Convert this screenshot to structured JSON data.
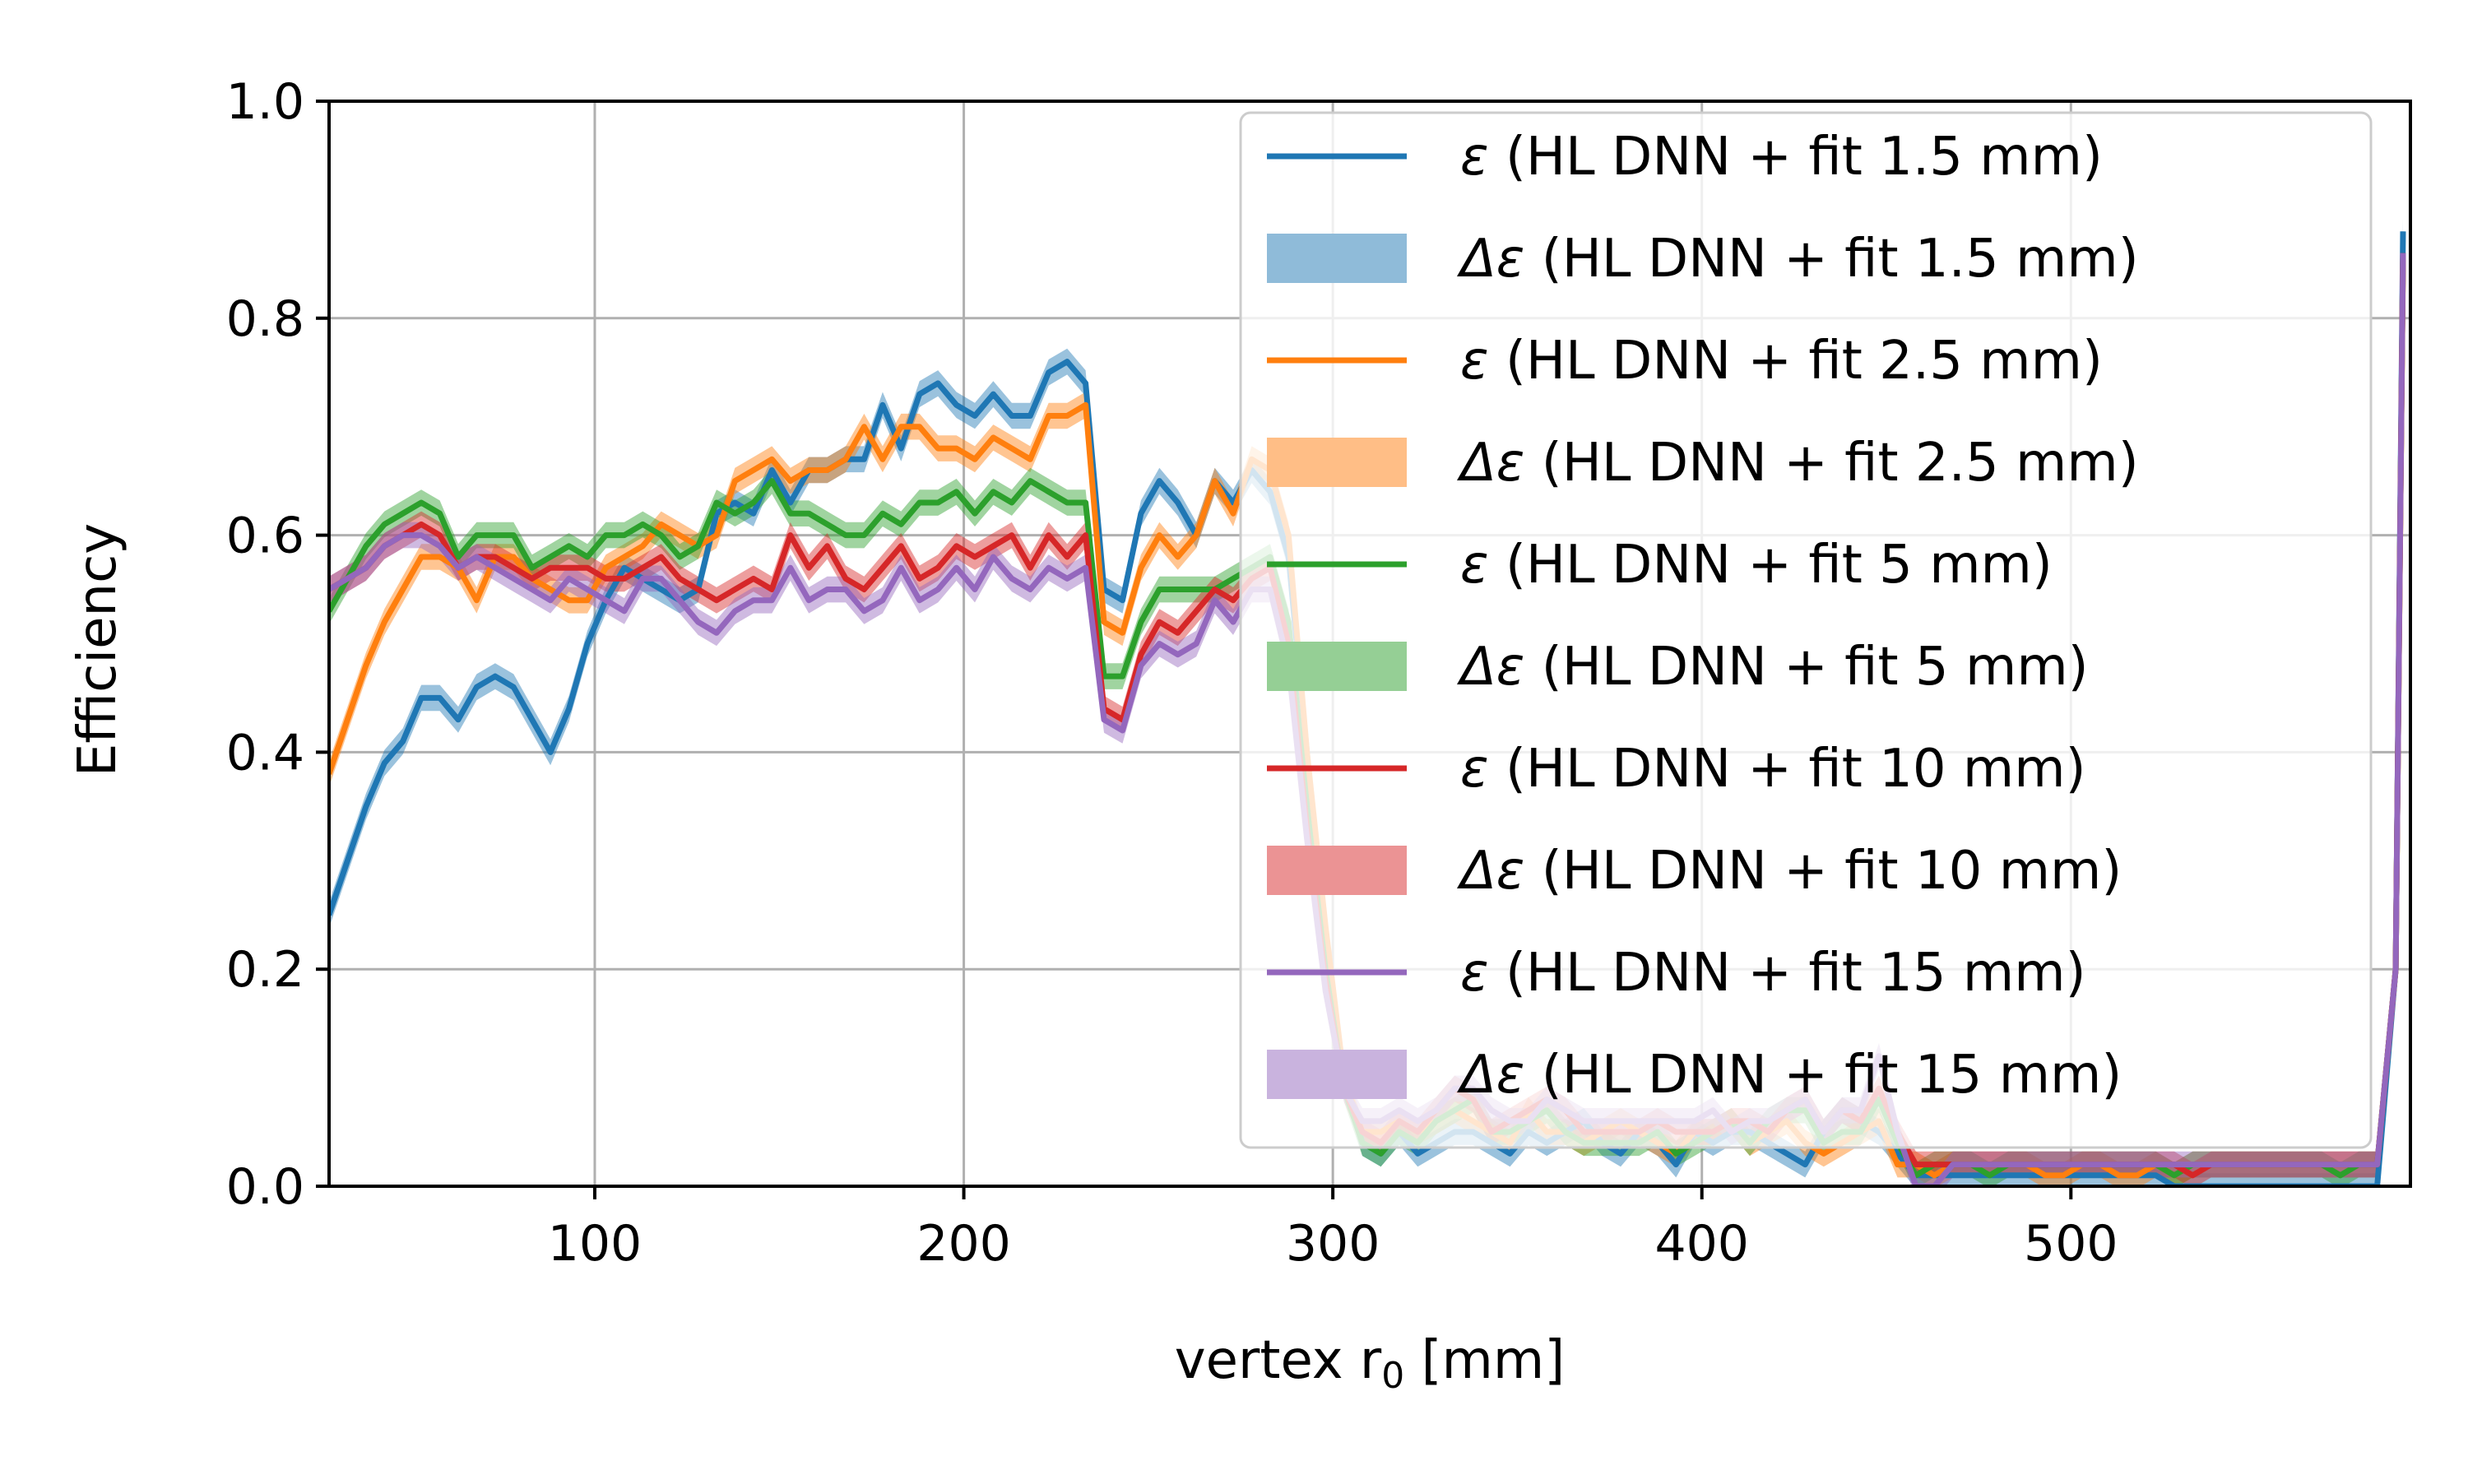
{
  "chart_data": {
    "type": "line",
    "title": "",
    "xlabel": "vertex r",
    "xlabel_sub": "0",
    "xlabel_unit": " [mm]",
    "ylabel": "Efficiency",
    "xlim": [
      28,
      592
    ],
    "ylim": [
      0,
      1.0
    ],
    "xticks": [
      100,
      200,
      300,
      400,
      500
    ],
    "xtick_labels": [
      "100",
      "200",
      "300",
      "400",
      "500"
    ],
    "yticks": [
      0,
      0.2,
      0.4,
      0.6,
      0.8,
      1.0
    ],
    "ytick_labels": [
      "0.0",
      "0.2",
      "0.4",
      "0.6",
      "0.8",
      "1.0"
    ],
    "grid": true,
    "legend_position": "top-right",
    "legend": [
      {
        "kind": "line",
        "series": 0,
        "symbol": "ε",
        "text": " (HL DNN + fit 1.5 mm)"
      },
      {
        "kind": "band",
        "series": 0,
        "symbol": "Δε",
        "text": " (HL DNN + fit 1.5 mm)"
      },
      {
        "kind": "line",
        "series": 1,
        "symbol": "ε",
        "text": " (HL DNN + fit 2.5 mm)"
      },
      {
        "kind": "band",
        "series": 1,
        "symbol": "Δε",
        "text": " (HL DNN + fit 2.5 mm)"
      },
      {
        "kind": "line",
        "series": 2,
        "symbol": "ε",
        "text": " (HL DNN + fit 5 mm)"
      },
      {
        "kind": "band",
        "series": 2,
        "symbol": "Δε",
        "text": " (HL DNN + fit 5 mm)"
      },
      {
        "kind": "line",
        "series": 3,
        "symbol": "ε",
        "text": " (HL DNN + fit 10 mm)"
      },
      {
        "kind": "band",
        "series": 3,
        "symbol": "Δε",
        "text": " (HL DNN + fit 10 mm)"
      },
      {
        "kind": "line",
        "series": 4,
        "symbol": "ε",
        "text": " (HL DNN + fit 15 mm)"
      },
      {
        "kind": "band",
        "series": 4,
        "symbol": "Δε",
        "text": " (HL DNN + fit 15 mm)"
      }
    ],
    "x": [
      28,
      33,
      38,
      43,
      48,
      53,
      58,
      63,
      68,
      73,
      78,
      83,
      88,
      93,
      98,
      103,
      108,
      113,
      118,
      123,
      128,
      133,
      138,
      143,
      148,
      153,
      158,
      163,
      168,
      173,
      178,
      183,
      188,
      193,
      198,
      203,
      208,
      213,
      218,
      223,
      228,
      233,
      238,
      243,
      248,
      253,
      258,
      263,
      268,
      273,
      278,
      283,
      288,
      293,
      298,
      303,
      308,
      313,
      318,
      323,
      328,
      333,
      338,
      343,
      348,
      353,
      358,
      363,
      368,
      373,
      378,
      383,
      388,
      393,
      398,
      403,
      408,
      413,
      418,
      423,
      428,
      433,
      438,
      443,
      448,
      453,
      458,
      463,
      468,
      473,
      478,
      483,
      488,
      493,
      498,
      503,
      508,
      513,
      518,
      523,
      528,
      533,
      538,
      543,
      548,
      553,
      558,
      563,
      568,
      573,
      578,
      583,
      588,
      590
    ],
    "series": [
      {
        "name": "HL DNN + fit 1.5 mm",
        "color": "#1f77b4",
        "band_color": "#8fbbd9",
        "band": 0.012,
        "values": [
          0.25,
          0.3,
          0.35,
          0.39,
          0.41,
          0.45,
          0.45,
          0.43,
          0.46,
          0.47,
          0.46,
          0.43,
          0.4,
          0.44,
          0.5,
          0.54,
          0.57,
          0.56,
          0.55,
          0.54,
          0.55,
          0.62,
          0.63,
          0.62,
          0.66,
          0.63,
          0.66,
          0.66,
          0.67,
          0.67,
          0.72,
          0.68,
          0.73,
          0.74,
          0.72,
          0.71,
          0.73,
          0.71,
          0.71,
          0.75,
          0.76,
          0.74,
          0.55,
          0.54,
          0.62,
          0.65,
          0.63,
          0.6,
          0.65,
          0.63,
          0.66,
          0.64,
          0.58,
          0.4,
          0.22,
          0.1,
          0.04,
          0.03,
          0.05,
          0.03,
          0.04,
          0.05,
          0.05,
          0.04,
          0.03,
          0.05,
          0.04,
          0.05,
          0.06,
          0.04,
          0.03,
          0.05,
          0.04,
          0.02,
          0.05,
          0.04,
          0.05,
          0.05,
          0.04,
          0.03,
          0.02,
          0.05,
          0.07,
          0.06,
          0.05,
          0.03,
          0.01,
          0.01,
          0.01,
          0.01,
          0.01,
          0.01,
          0.01,
          0.01,
          0.01,
          0.01,
          0.01,
          0.01,
          0.01,
          0.01,
          0.0,
          0.0,
          0.0,
          0.0,
          0.0,
          0.0,
          0.0,
          0.0,
          0.0,
          0.0,
          0.0,
          0.0,
          0.2,
          0.88
        ]
      },
      {
        "name": "HL DNN + fit 2.5 mm",
        "color": "#ff7f0e",
        "band_color": "#ffbe86",
        "band": 0.012,
        "values": [
          0.38,
          0.43,
          0.48,
          0.52,
          0.55,
          0.58,
          0.58,
          0.57,
          0.54,
          0.58,
          0.58,
          0.56,
          0.55,
          0.54,
          0.54,
          0.57,
          0.58,
          0.59,
          0.61,
          0.6,
          0.59,
          0.6,
          0.65,
          0.66,
          0.67,
          0.65,
          0.66,
          0.66,
          0.67,
          0.7,
          0.67,
          0.7,
          0.7,
          0.68,
          0.68,
          0.67,
          0.69,
          0.68,
          0.67,
          0.71,
          0.71,
          0.72,
          0.52,
          0.51,
          0.57,
          0.6,
          0.58,
          0.6,
          0.65,
          0.62,
          0.67,
          0.66,
          0.6,
          0.4,
          0.24,
          0.1,
          0.05,
          0.05,
          0.06,
          0.05,
          0.06,
          0.07,
          0.06,
          0.05,
          0.04,
          0.07,
          0.05,
          0.05,
          0.04,
          0.05,
          0.06,
          0.05,
          0.04,
          0.03,
          0.05,
          0.05,
          0.06,
          0.04,
          0.05,
          0.06,
          0.04,
          0.03,
          0.04,
          0.05,
          0.06,
          0.02,
          0.02,
          0.01,
          0.02,
          0.02,
          0.02,
          0.02,
          0.02,
          0.01,
          0.01,
          0.02,
          0.02,
          0.01,
          0.01,
          0.02,
          0.01,
          0.02,
          0.02,
          0.02,
          0.02,
          0.02,
          0.02,
          0.02,
          0.02,
          0.02,
          0.02,
          0.02,
          0.2,
          0.85
        ]
      },
      {
        "name": "HL DNN + fit 5 mm",
        "color": "#2ca02c",
        "band_color": "#95cf95",
        "band": 0.012,
        "values": [
          0.53,
          0.56,
          0.59,
          0.61,
          0.62,
          0.63,
          0.62,
          0.58,
          0.6,
          0.6,
          0.6,
          0.57,
          0.58,
          0.59,
          0.58,
          0.6,
          0.6,
          0.61,
          0.6,
          0.58,
          0.59,
          0.63,
          0.62,
          0.63,
          0.65,
          0.62,
          0.62,
          0.61,
          0.6,
          0.6,
          0.62,
          0.61,
          0.63,
          0.63,
          0.64,
          0.62,
          0.64,
          0.63,
          0.65,
          0.64,
          0.63,
          0.63,
          0.47,
          0.47,
          0.52,
          0.55,
          0.55,
          0.55,
          0.55,
          0.56,
          0.57,
          0.58,
          0.52,
          0.35,
          0.2,
          0.09,
          0.04,
          0.03,
          0.05,
          0.04,
          0.06,
          0.07,
          0.08,
          0.05,
          0.05,
          0.06,
          0.07,
          0.05,
          0.04,
          0.04,
          0.04,
          0.04,
          0.05,
          0.03,
          0.04,
          0.05,
          0.06,
          0.04,
          0.06,
          0.07,
          0.07,
          0.04,
          0.05,
          0.05,
          0.08,
          0.04,
          0.01,
          0.02,
          0.02,
          0.02,
          0.01,
          0.02,
          0.02,
          0.02,
          0.02,
          0.02,
          0.02,
          0.02,
          0.02,
          0.02,
          0.01,
          0.02,
          0.02,
          0.02,
          0.02,
          0.02,
          0.02,
          0.02,
          0.02,
          0.01,
          0.02,
          0.02,
          0.2,
          0.86
        ]
      },
      {
        "name": "HL DNN + fit 10 mm",
        "color": "#d62728",
        "band_color": "#eb9394",
        "band": 0.012,
        "values": [
          0.55,
          0.56,
          0.57,
          0.59,
          0.6,
          0.61,
          0.6,
          0.57,
          0.58,
          0.58,
          0.57,
          0.56,
          0.57,
          0.57,
          0.57,
          0.56,
          0.56,
          0.57,
          0.58,
          0.56,
          0.55,
          0.54,
          0.55,
          0.56,
          0.55,
          0.6,
          0.57,
          0.59,
          0.56,
          0.55,
          0.57,
          0.59,
          0.56,
          0.57,
          0.59,
          0.58,
          0.59,
          0.6,
          0.57,
          0.6,
          0.58,
          0.6,
          0.44,
          0.43,
          0.49,
          0.52,
          0.51,
          0.53,
          0.55,
          0.54,
          0.56,
          0.57,
          0.5,
          0.33,
          0.19,
          0.09,
          0.05,
          0.04,
          0.06,
          0.05,
          0.07,
          0.09,
          0.08,
          0.05,
          0.06,
          0.07,
          0.08,
          0.07,
          0.05,
          0.05,
          0.05,
          0.05,
          0.06,
          0.05,
          0.05,
          0.05,
          0.06,
          0.06,
          0.05,
          0.07,
          0.08,
          0.05,
          0.07,
          0.06,
          0.09,
          0.05,
          0.02,
          0.02,
          0.02,
          0.02,
          0.02,
          0.02,
          0.02,
          0.02,
          0.02,
          0.02,
          0.02,
          0.02,
          0.02,
          0.02,
          0.02,
          0.01,
          0.02,
          0.02,
          0.02,
          0.02,
          0.02,
          0.02,
          0.02,
          0.02,
          0.02,
          0.02,
          0.2,
          0.86
        ]
      },
      {
        "name": "HL DNN + fit 15 mm",
        "color": "#9467bd",
        "band_color": "#c9b3de",
        "band": 0.012,
        "values": [
          0.55,
          0.56,
          0.57,
          0.59,
          0.6,
          0.6,
          0.59,
          0.57,
          0.58,
          0.57,
          0.56,
          0.55,
          0.54,
          0.56,
          0.55,
          0.54,
          0.53,
          0.56,
          0.56,
          0.54,
          0.52,
          0.51,
          0.53,
          0.54,
          0.54,
          0.57,
          0.54,
          0.55,
          0.55,
          0.53,
          0.54,
          0.57,
          0.54,
          0.55,
          0.57,
          0.55,
          0.58,
          0.56,
          0.55,
          0.57,
          0.56,
          0.57,
          0.43,
          0.42,
          0.48,
          0.5,
          0.49,
          0.5,
          0.54,
          0.52,
          0.55,
          0.55,
          0.48,
          0.32,
          0.18,
          0.09,
          0.06,
          0.06,
          0.07,
          0.06,
          0.07,
          0.09,
          0.09,
          0.07,
          0.06,
          0.06,
          0.08,
          0.07,
          0.06,
          0.06,
          0.06,
          0.06,
          0.06,
          0.06,
          0.06,
          0.07,
          0.05,
          0.06,
          0.06,
          0.07,
          0.08,
          0.05,
          0.07,
          0.07,
          0.12,
          0.05,
          0.0,
          0.0,
          0.02,
          0.02,
          0.02,
          0.02,
          0.02,
          0.02,
          0.02,
          0.02,
          0.02,
          0.02,
          0.02,
          0.02,
          0.02,
          0.02,
          0.02,
          0.02,
          0.02,
          0.02,
          0.02,
          0.02,
          0.02,
          0.02,
          0.02,
          0.02,
          0.2,
          0.86
        ]
      }
    ]
  }
}
